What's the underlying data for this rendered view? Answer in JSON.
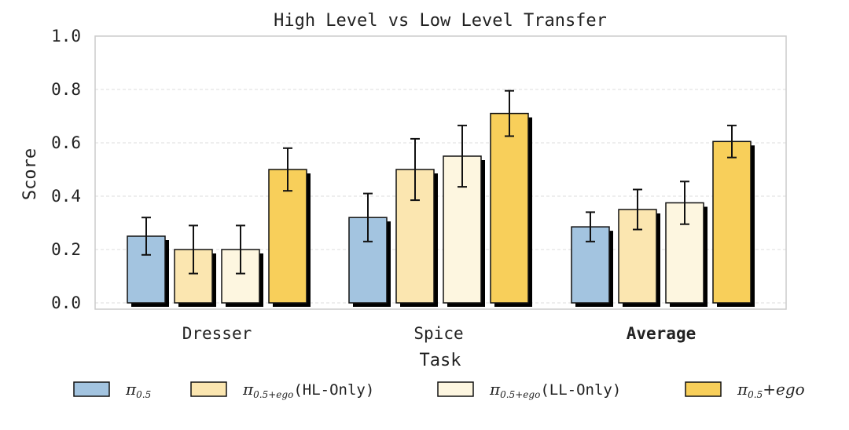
{
  "chart_data": {
    "type": "bar",
    "title": "High Level vs Low Level Transfer",
    "xlabel": "Task",
    "ylabel": "Score",
    "ylim": [
      0,
      1.0
    ],
    "yticks": [
      "0.0",
      "0.2",
      "0.4",
      "0.6",
      "0.8",
      "1.0"
    ],
    "ytick_values": [
      0.0,
      0.2,
      0.4,
      0.6,
      0.8,
      1.0
    ],
    "grid": true,
    "categories": [
      "Dresser",
      "Spice",
      "Average"
    ],
    "bold_categories": [
      "Average"
    ],
    "series": [
      {
        "name": "π0.5",
        "legend_base": "π",
        "legend_sub": "0.5",
        "legend_suffix": "",
        "color": "#a3c4e0",
        "values": [
          0.25,
          0.32,
          0.285
        ],
        "err": [
          0.07,
          0.09,
          0.055
        ]
      },
      {
        "name": "π0.5+ego(HL-Only)",
        "legend_base": "π",
        "legend_sub": "0.5+ego",
        "legend_suffix": "(HL-Only)",
        "color": "#fbe6b0",
        "values": [
          0.2,
          0.5,
          0.35
        ],
        "err": [
          0.09,
          0.115,
          0.075
        ]
      },
      {
        "name": "π0.5+ego(LL-Only)",
        "legend_base": "π",
        "legend_sub": "0.5+ego",
        "legend_suffix": "(LL-Only)",
        "color": "#fdf6e0",
        "values": [
          0.2,
          0.55,
          0.375
        ],
        "err": [
          0.09,
          0.115,
          0.08
        ]
      },
      {
        "name": "π0.5+ego",
        "legend_base": "π",
        "legend_sub": "0.5",
        "legend_suffix": "+ego",
        "color": "#f8cf5a",
        "values": [
          0.5,
          0.71,
          0.605
        ],
        "err": [
          0.08,
          0.085,
          0.06
        ]
      }
    ],
    "legend_position": "bottom"
  },
  "colors": {
    "bar_edge": "#111111",
    "shadow": "#000000",
    "axes_edge": "#cccccc",
    "grid": "#dddddd",
    "error_bar": "#111111"
  }
}
